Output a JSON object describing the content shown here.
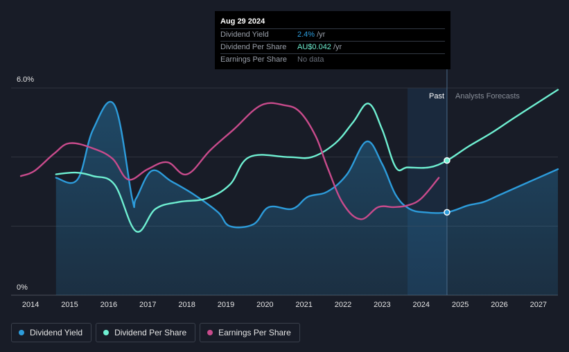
{
  "tooltip": {
    "date": "Aug 29 2024",
    "rows": [
      {
        "label": "Dividend Yield",
        "value": "2.4%",
        "unit": "/yr",
        "color": "#2d9cdb"
      },
      {
        "label": "Dividend Per Share",
        "value": "AU$0.042",
        "unit": "/yr",
        "color": "#6ff0d2"
      },
      {
        "label": "Earnings Per Share",
        "value": "No data",
        "unit": "",
        "color": "#6b717c"
      }
    ]
  },
  "regions": {
    "past_label": "Past",
    "forecast_label": "Analysts Forecasts"
  },
  "legend": [
    {
      "label": "Dividend Yield",
      "color": "#2d9cdb"
    },
    {
      "label": "Dividend Per Share",
      "color": "#6ff0d2"
    },
    {
      "label": "Earnings Per Share",
      "color": "#c94b8c"
    }
  ],
  "chart_data": {
    "type": "line",
    "y_tick_labels": [
      "6.0%",
      "0%"
    ],
    "ylim": [
      0,
      6.0
    ],
    "xlim": [
      2013.5,
      2027.5
    ],
    "x_ticks": [
      2014,
      2015,
      2016,
      2017,
      2018,
      2019,
      2020,
      2021,
      2022,
      2023,
      2024,
      2025,
      2026,
      2027
    ],
    "grid": true,
    "past_region": [
      2023.65,
      2024.66
    ],
    "series": [
      {
        "name": "Dividend Yield",
        "color": "#2d9cdb",
        "filled": true,
        "points": [
          [
            2014.65,
            3.4
          ],
          [
            2015.2,
            3.35
          ],
          [
            2015.6,
            4.8
          ],
          [
            2016.15,
            5.5
          ],
          [
            2016.6,
            2.8
          ],
          [
            2016.7,
            2.8
          ],
          [
            2017.1,
            3.6
          ],
          [
            2017.6,
            3.3
          ],
          [
            2018.2,
            2.9
          ],
          [
            2018.8,
            2.4
          ],
          [
            2019.1,
            2.0
          ],
          [
            2019.7,
            2.05
          ],
          [
            2020.1,
            2.55
          ],
          [
            2020.7,
            2.5
          ],
          [
            2021.1,
            2.85
          ],
          [
            2021.6,
            3.0
          ],
          [
            2022.1,
            3.5
          ],
          [
            2022.6,
            4.45
          ],
          [
            2023.0,
            3.8
          ],
          [
            2023.35,
            2.9
          ],
          [
            2023.7,
            2.5
          ],
          [
            2024.1,
            2.4
          ],
          [
            2024.66,
            2.4
          ],
          [
            2025.2,
            2.6
          ],
          [
            2025.6,
            2.7
          ],
          [
            2026.0,
            2.9
          ],
          [
            2026.6,
            3.2
          ],
          [
            2027.5,
            3.65
          ]
        ]
      },
      {
        "name": "Dividend Per Share",
        "color": "#6ff0d2",
        "filled": false,
        "points": [
          [
            2014.65,
            3.5
          ],
          [
            2015.15,
            3.55
          ],
          [
            2015.6,
            3.45
          ],
          [
            2016.15,
            3.2
          ],
          [
            2016.7,
            1.85
          ],
          [
            2017.2,
            2.5
          ],
          [
            2017.8,
            2.7
          ],
          [
            2018.5,
            2.8
          ],
          [
            2019.1,
            3.2
          ],
          [
            2019.6,
            4.0
          ],
          [
            2020.6,
            4.0
          ],
          [
            2021.2,
            4.0
          ],
          [
            2021.8,
            4.4
          ],
          [
            2022.25,
            5.0
          ],
          [
            2022.65,
            5.55
          ],
          [
            2023.0,
            4.8
          ],
          [
            2023.35,
            3.7
          ],
          [
            2023.65,
            3.7
          ],
          [
            2024.2,
            3.7
          ],
          [
            2024.66,
            3.9
          ],
          [
            2025.2,
            4.3
          ],
          [
            2025.8,
            4.7
          ],
          [
            2026.4,
            5.15
          ],
          [
            2027.5,
            5.95
          ]
        ]
      },
      {
        "name": "Earnings Per Share",
        "color": "#c94b8c",
        "filled": false,
        "points": [
          [
            2013.75,
            3.45
          ],
          [
            2014.1,
            3.6
          ],
          [
            2014.6,
            4.1
          ],
          [
            2015.0,
            4.4
          ],
          [
            2015.6,
            4.25
          ],
          [
            2016.1,
            3.95
          ],
          [
            2016.5,
            3.35
          ],
          [
            2017.0,
            3.65
          ],
          [
            2017.5,
            3.85
          ],
          [
            2018.0,
            3.5
          ],
          [
            2018.6,
            4.2
          ],
          [
            2019.2,
            4.8
          ],
          [
            2019.9,
            5.5
          ],
          [
            2020.5,
            5.5
          ],
          [
            2020.9,
            5.3
          ],
          [
            2021.3,
            4.6
          ],
          [
            2021.6,
            3.7
          ],
          [
            2022.0,
            2.65
          ],
          [
            2022.45,
            2.2
          ],
          [
            2022.9,
            2.55
          ],
          [
            2023.3,
            2.55
          ],
          [
            2023.65,
            2.6
          ],
          [
            2024.0,
            2.8
          ],
          [
            2024.45,
            3.4
          ]
        ]
      }
    ],
    "markers": [
      {
        "series": "Dividend Yield",
        "x": 2024.66,
        "y": 2.4
      },
      {
        "series": "Dividend Per Share",
        "x": 2024.66,
        "y": 3.9
      }
    ]
  }
}
